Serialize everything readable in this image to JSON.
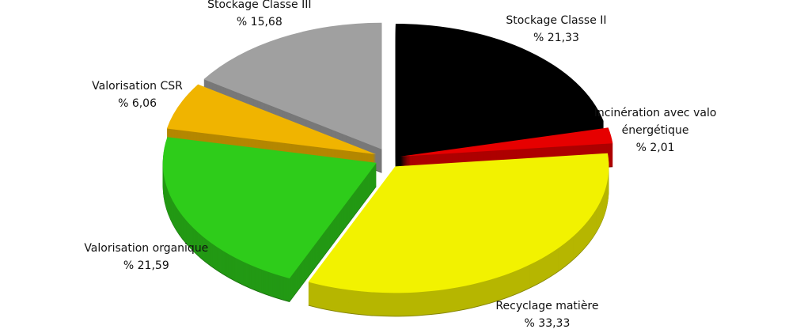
{
  "chart_data": {
    "type": "pie",
    "categories": [
      "Stockage Classe II",
      "Incinération avec valo énergétique",
      "Recyclage matière",
      "Valorisation organique",
      "Valorisation CSR",
      "Stockage Classe III"
    ],
    "values": [
      21.33,
      2.01,
      33.33,
      21.59,
      6.06,
      15.68
    ],
    "value_labels": [
      "% 21,33",
      "% 2,01",
      "% 33,33",
      "% 21,59",
      "% 6,06",
      "% 15,68"
    ],
    "colors": [
      "#000000",
      "#e60000",
      "#f2f200",
      "#2ecc1a",
      "#f0b400",
      "#a0a0a0"
    ]
  }
}
